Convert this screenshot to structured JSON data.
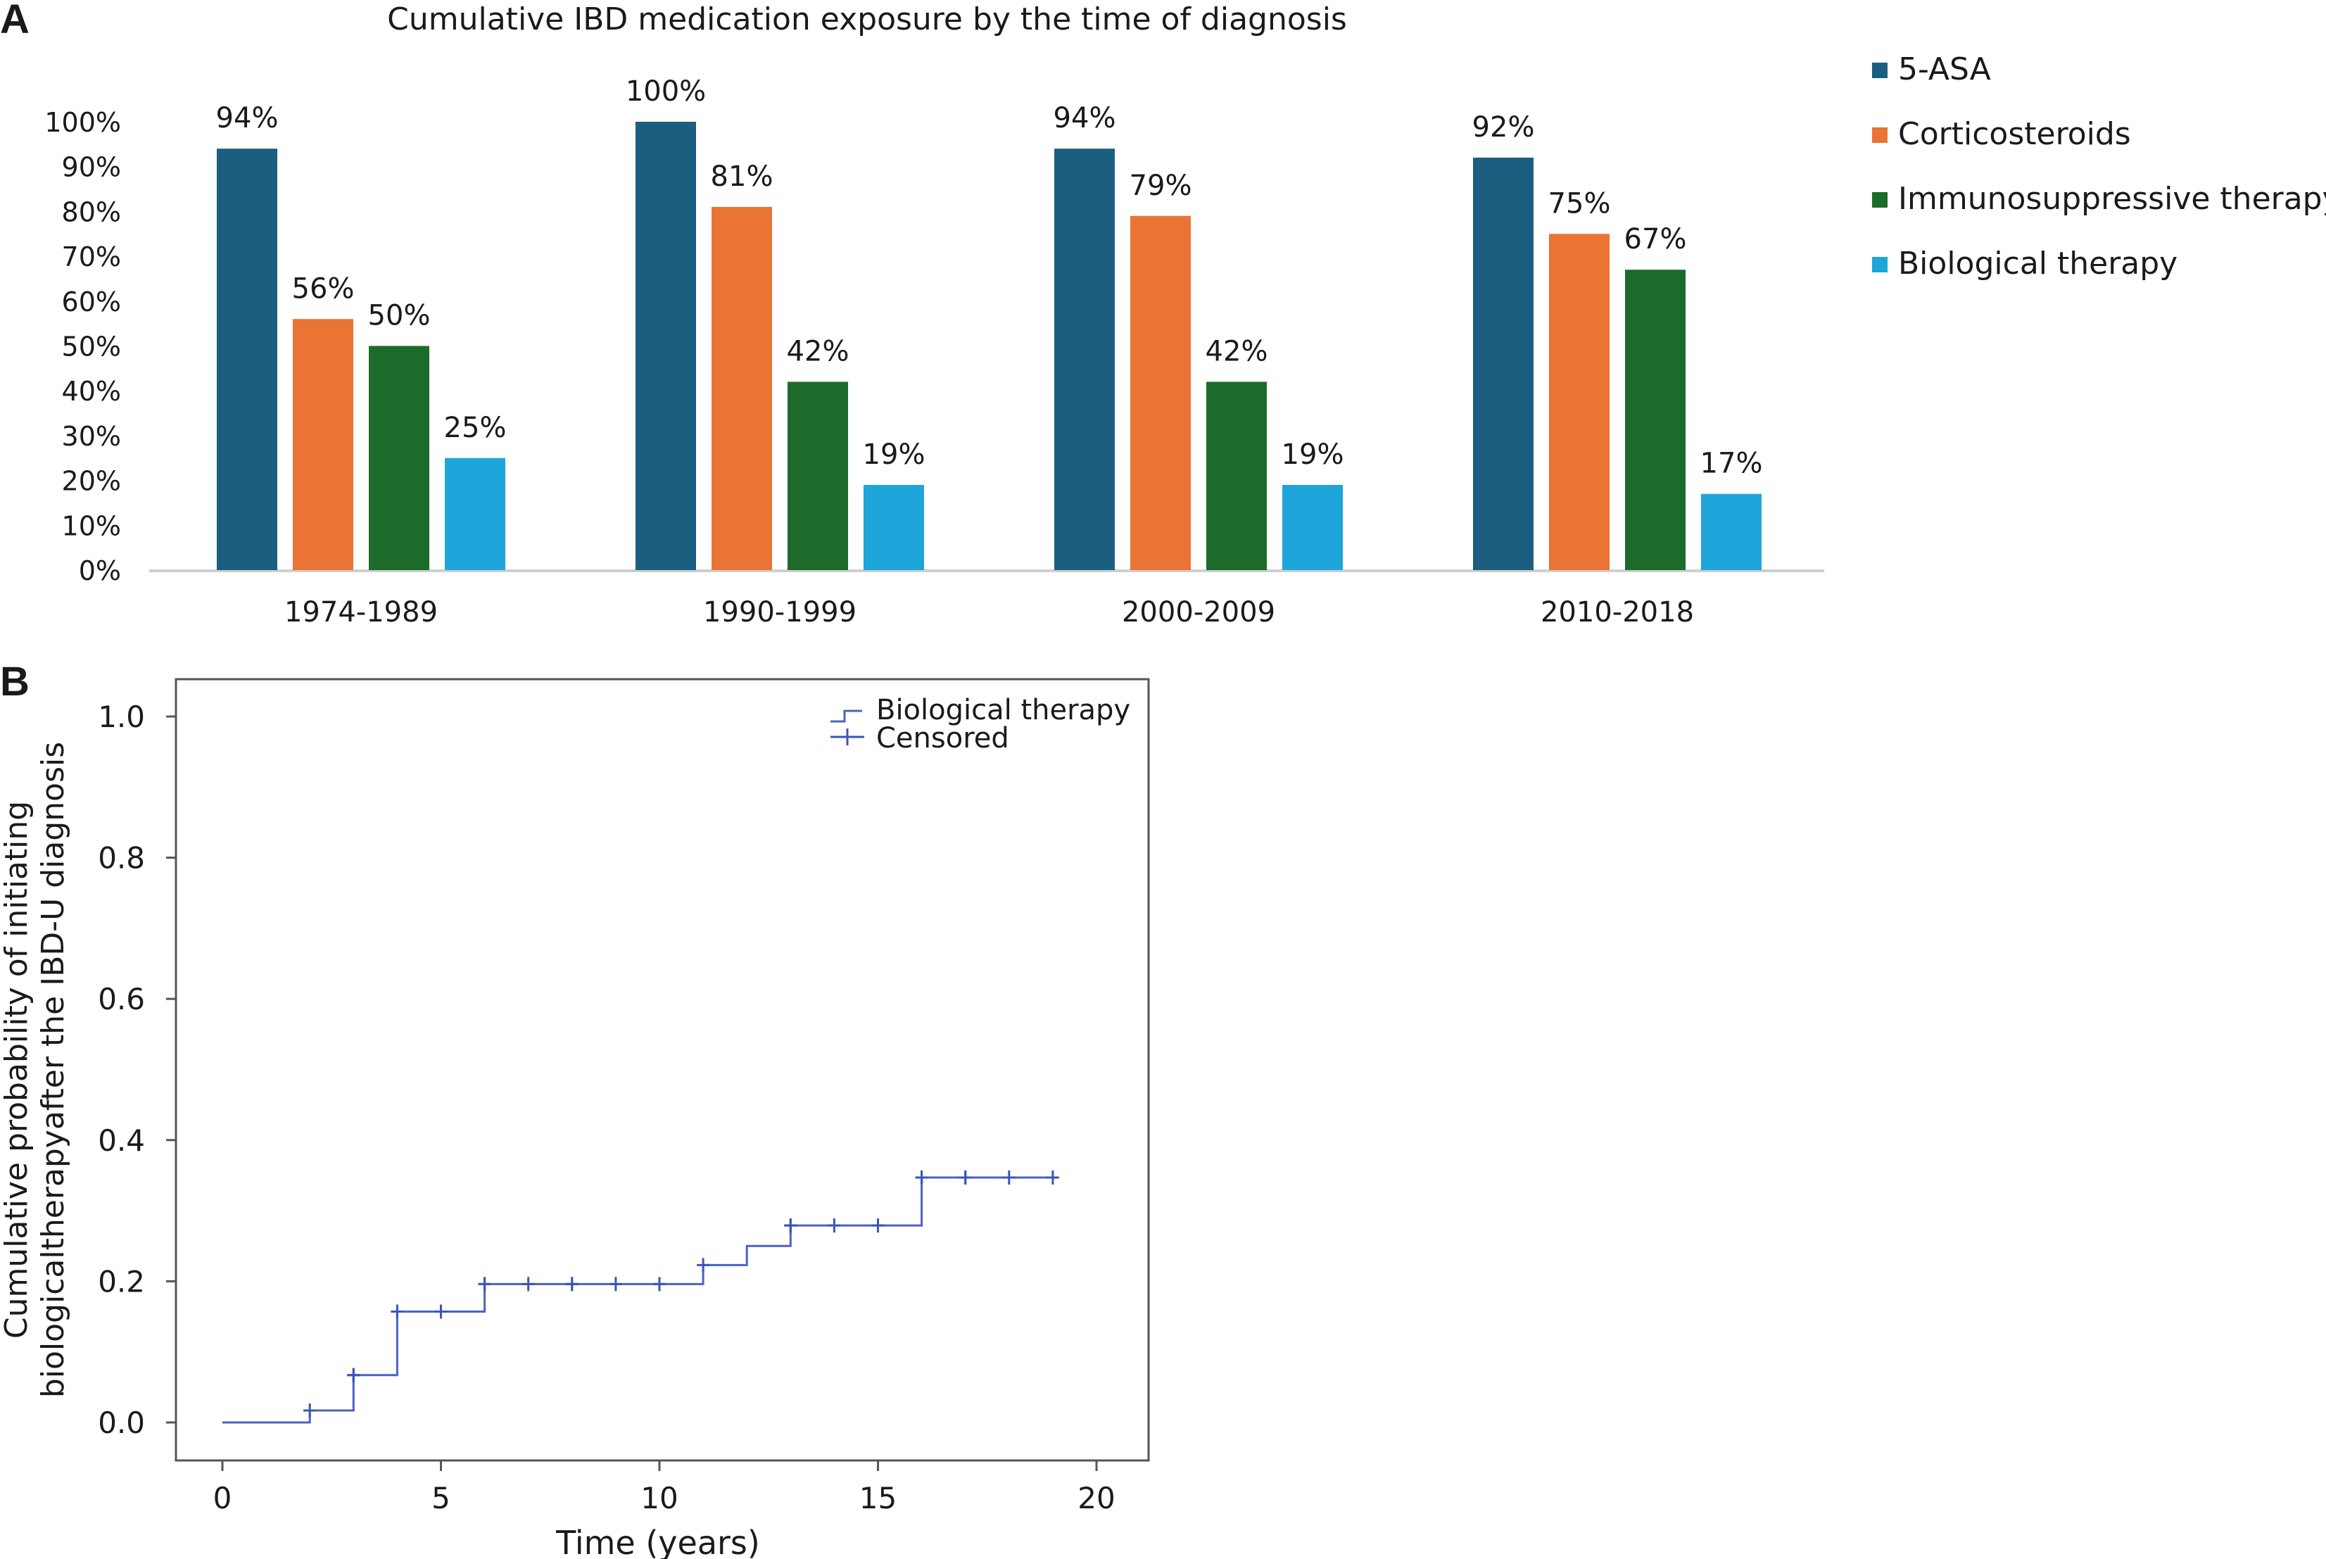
{
  "panel_a_label": "A",
  "panel_b_label": "B",
  "chart_data": [
    {
      "type": "bar",
      "title": "Cumulative IBD medication exposure by the time of diagnosis",
      "xlabel": "",
      "ylabel": "",
      "categories": [
        "1974-1989",
        "1990-1999",
        "2000-2009",
        "2010-2018"
      ],
      "ylim": [
        0,
        100
      ],
      "y_ticks": [
        "0%",
        "10%",
        "20%",
        "30%",
        "40%",
        "50%",
        "60%",
        "70%",
        "80%",
        "90%",
        "100%"
      ],
      "legend_position": "right",
      "grid": false,
      "series": [
        {
          "name": "5-ASA",
          "color": "#1b5e80",
          "values": [
            94,
            100,
            94,
            92
          ],
          "labels": [
            "94%",
            "100%",
            "94%",
            "92%"
          ]
        },
        {
          "name": "Corticosteroids",
          "color": "#e97434",
          "values": [
            56,
            81,
            79,
            75
          ],
          "labels": [
            "56%",
            "81%",
            "79%",
            "75%"
          ]
        },
        {
          "name": "Immunosuppressive therapy",
          "color": "#1c6b2a",
          "values": [
            50,
            42,
            42,
            67
          ],
          "labels": [
            "50%",
            "42%",
            "42%",
            "67%"
          ]
        },
        {
          "name": "Biological therapy",
          "color": "#1ea5da",
          "values": [
            25,
            19,
            19,
            17
          ],
          "labels": [
            "25%",
            "19%",
            "19%",
            "17%"
          ]
        }
      ]
    },
    {
      "type": "line",
      "title": "",
      "xlabel": "Time (years)",
      "ylabel_lines": [
        "Cumulative probability of initiating",
        "biologicaltherapyafter the IBD-U diagnosis"
      ],
      "xlim": [
        0,
        20
      ],
      "ylim": [
        0,
        1
      ],
      "x_ticks": [
        "0",
        "5",
        "10",
        "15",
        "20"
      ],
      "y_ticks": [
        "0.0",
        "0.2",
        "0.4",
        "0.6",
        "0.8",
        "1.0"
      ],
      "legend_position": "top-right",
      "grid": false,
      "line_color": "#4a63c4",
      "series": [
        {
          "name": "Biological therapy",
          "step": true,
          "x": [
            0,
            2,
            3,
            4,
            6,
            11,
            12,
            13,
            16,
            19
          ],
          "y": [
            0.0,
            0.017,
            0.067,
            0.157,
            0.196,
            0.223,
            0.25,
            0.279,
            0.347,
            0.347
          ]
        },
        {
          "name": "Censored",
          "marker": "+",
          "x": [
            2,
            3,
            3,
            4,
            5,
            5,
            6,
            6,
            7,
            8,
            8,
            9,
            10,
            11,
            13,
            13,
            14,
            15,
            16,
            16,
            17,
            17,
            18,
            19
          ],
          "y": [
            0.017,
            0.067,
            0.067,
            0.157,
            0.157,
            0.157,
            0.196,
            0.196,
            0.196,
            0.196,
            0.196,
            0.196,
            0.196,
            0.223,
            0.279,
            0.279,
            0.279,
            0.279,
            0.347,
            0.347,
            0.347,
            0.347,
            0.347,
            0.347
          ]
        }
      ]
    }
  ]
}
